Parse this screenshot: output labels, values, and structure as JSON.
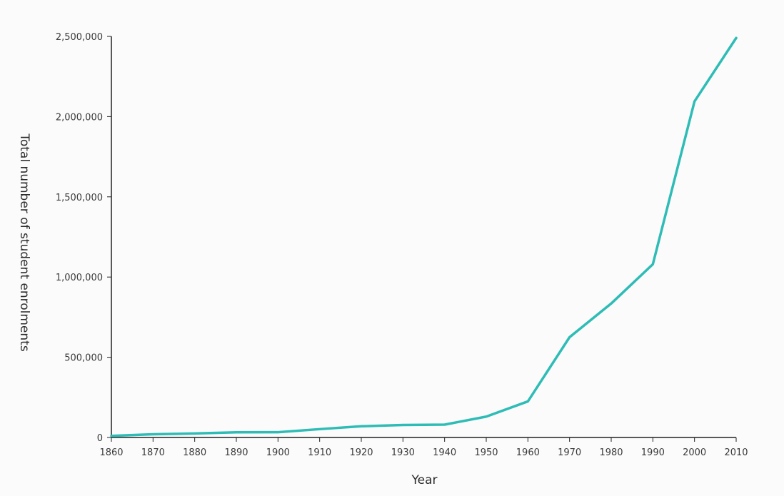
{
  "chart_data": {
    "type": "line",
    "title": "",
    "xlabel": "Year",
    "ylabel": "Total number of student enrolments",
    "xlim": [
      1860,
      2010
    ],
    "ylim": [
      0,
      2500000
    ],
    "grid": false,
    "x_ticks": [
      {
        "value": 1860,
        "label": "1860"
      },
      {
        "value": 1870,
        "label": "1870"
      },
      {
        "value": 1880,
        "label": "1880"
      },
      {
        "value": 1890,
        "label": "1890"
      },
      {
        "value": 1900,
        "label": "1900"
      },
      {
        "value": 1910,
        "label": "1910"
      },
      {
        "value": 1920,
        "label": "1920"
      },
      {
        "value": 1930,
        "label": "1930"
      },
      {
        "value": 1940,
        "label": "1940"
      },
      {
        "value": 1950,
        "label": "1950"
      },
      {
        "value": 1960,
        "label": "1960"
      },
      {
        "value": 1970,
        "label": "1970"
      },
      {
        "value": 1980,
        "label": "1980"
      },
      {
        "value": 1990,
        "label": "1990"
      },
      {
        "value": 2000,
        "label": "2000"
      },
      {
        "value": 2010,
        "label": "2010"
      }
    ],
    "y_ticks": [
      {
        "value": 0,
        "label": "0"
      },
      {
        "value": 500000,
        "label": "500,000"
      },
      {
        "value": 1000000,
        "label": "1,000,000"
      },
      {
        "value": 1500000,
        "label": "1,500,000"
      },
      {
        "value": 2000000,
        "label": "2,000,000"
      },
      {
        "value": 2500000,
        "label": "2,500,000"
      }
    ],
    "series": [
      {
        "color": "#2ebcb6",
        "x": [
          1860,
          1870,
          1880,
          1890,
          1900,
          1910,
          1920,
          1930,
          1940,
          1950,
          1960,
          1970,
          1980,
          1990,
          2000,
          2010
        ],
        "values": [
          10000,
          20000,
          25000,
          32000,
          33000,
          52000,
          70000,
          78000,
          80000,
          130000,
          225000,
          625000,
          835000,
          1080000,
          2095000,
          2490000
        ]
      }
    ]
  }
}
